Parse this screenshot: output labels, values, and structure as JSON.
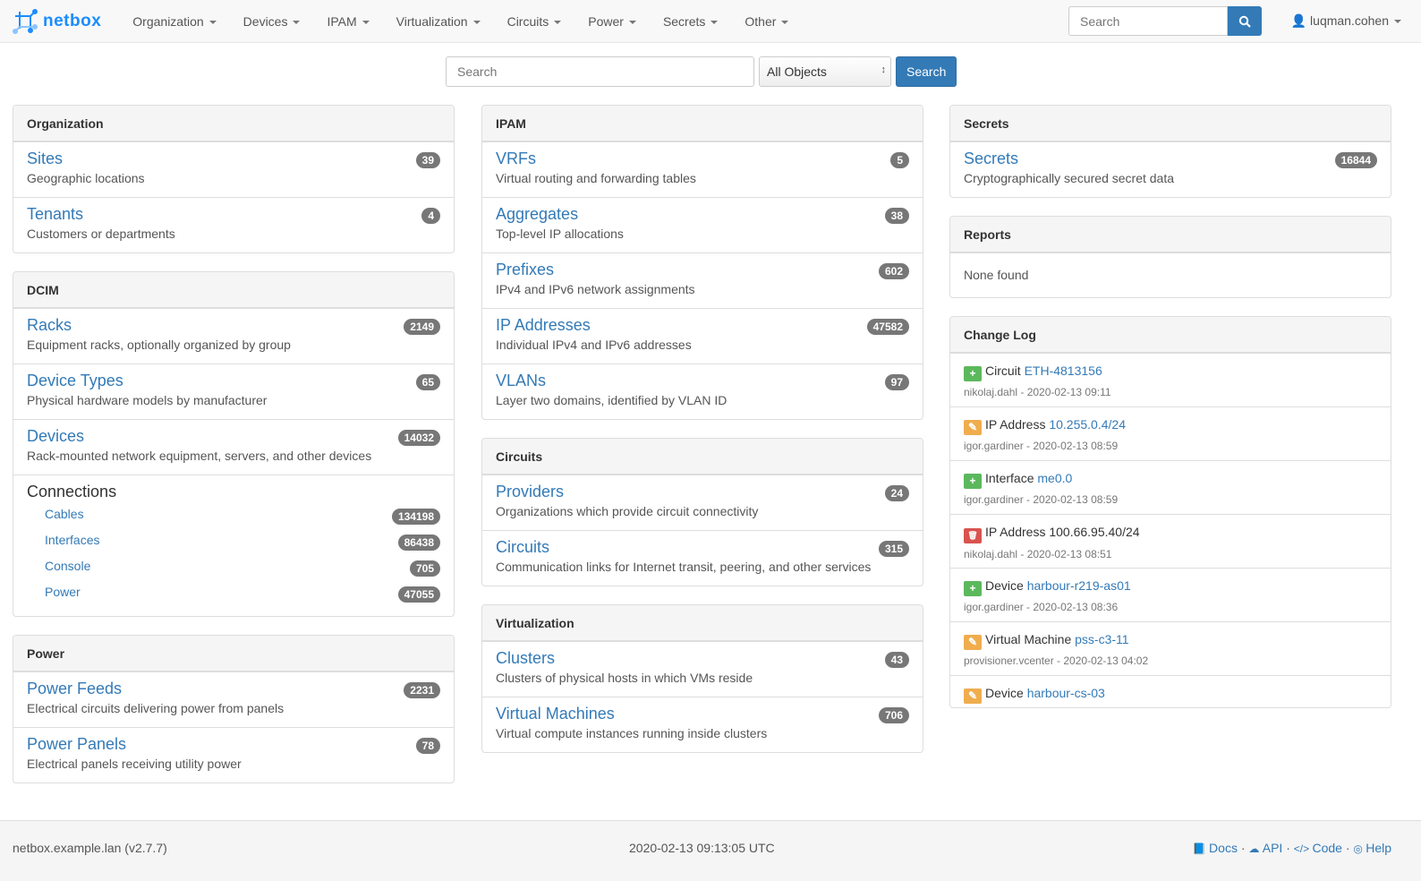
{
  "navbar": {
    "brand": "netbox",
    "menus": [
      "Organization",
      "Devices",
      "IPAM",
      "Virtualization",
      "Circuits",
      "Power",
      "Secrets",
      "Other"
    ],
    "search_placeholder": "Search",
    "user": "luqman.cohen"
  },
  "global_search": {
    "placeholder": "Search",
    "scope": "All Objects",
    "button": "Search"
  },
  "columns": [
    [
      {
        "title": "Organization",
        "items": [
          {
            "label": "Sites",
            "desc": "Geographic locations",
            "count": "39"
          },
          {
            "label": "Tenants",
            "desc": "Customers or departments",
            "count": "4"
          }
        ]
      },
      {
        "title": "DCIM",
        "items": [
          {
            "label": "Racks",
            "desc": "Equipment racks, optionally organized by group",
            "count": "2149"
          },
          {
            "label": "Device Types",
            "desc": "Physical hardware models by manufacturer",
            "count": "65"
          },
          {
            "label": "Devices",
            "desc": "Rack-mounted network equipment, servers, and other devices",
            "count": "14032"
          }
        ],
        "connections": {
          "title": "Connections",
          "items": [
            {
              "label": "Cables",
              "count": "134198"
            },
            {
              "label": "Interfaces",
              "count": "86438"
            },
            {
              "label": "Console",
              "count": "705"
            },
            {
              "label": "Power",
              "count": "47055"
            }
          ]
        }
      },
      {
        "title": "Power",
        "items": [
          {
            "label": "Power Feeds",
            "desc": "Electrical circuits delivering power from panels",
            "count": "2231"
          },
          {
            "label": "Power Panels",
            "desc": "Electrical panels receiving utility power",
            "count": "78"
          }
        ]
      }
    ],
    [
      {
        "title": "IPAM",
        "items": [
          {
            "label": "VRFs",
            "desc": "Virtual routing and forwarding tables",
            "count": "5"
          },
          {
            "label": "Aggregates",
            "desc": "Top-level IP allocations",
            "count": "38"
          },
          {
            "label": "Prefixes",
            "desc": "IPv4 and IPv6 network assignments",
            "count": "602"
          },
          {
            "label": "IP Addresses",
            "desc": "Individual IPv4 and IPv6 addresses",
            "count": "47582"
          },
          {
            "label": "VLANs",
            "desc": "Layer two domains, identified by VLAN ID",
            "count": "97"
          }
        ]
      },
      {
        "title": "Circuits",
        "items": [
          {
            "label": "Providers",
            "desc": "Organizations which provide circuit connectivity",
            "count": "24"
          },
          {
            "label": "Circuits",
            "desc": "Communication links for Internet transit, peering, and other services",
            "count": "315"
          }
        ]
      },
      {
        "title": "Virtualization",
        "items": [
          {
            "label": "Clusters",
            "desc": "Clusters of physical hosts in which VMs reside",
            "count": "43"
          },
          {
            "label": "Virtual Machines",
            "desc": "Virtual compute instances running inside clusters",
            "count": "706"
          }
        ]
      }
    ],
    [
      {
        "title": "Secrets",
        "items": [
          {
            "label": "Secrets",
            "desc": "Cryptographically secured secret data",
            "count": "16844"
          }
        ]
      },
      {
        "title": "Reports",
        "empty": "None found"
      }
    ]
  ],
  "changelog": {
    "title": "Change Log",
    "entries": [
      {
        "action": "create",
        "type": "Circuit",
        "object": "ETH-4813156",
        "linked": true,
        "meta": "nikolaj.dahl - 2020-02-13 09:11"
      },
      {
        "action": "update",
        "type": "IP Address",
        "object": "10.255.0.4/24",
        "linked": true,
        "meta": "igor.gardiner - 2020-02-13 08:59"
      },
      {
        "action": "create",
        "type": "Interface",
        "object": "me0.0",
        "linked": true,
        "meta": "igor.gardiner - 2020-02-13 08:59"
      },
      {
        "action": "delete",
        "type": "IP Address",
        "object": "100.66.95.40/24",
        "linked": false,
        "meta": "nikolaj.dahl - 2020-02-13 08:51"
      },
      {
        "action": "create",
        "type": "Device",
        "object": "harbour-r219-as01",
        "linked": true,
        "meta": "igor.gardiner - 2020-02-13 08:36"
      },
      {
        "action": "update",
        "type": "Virtual Machine",
        "object": "pss-c3-11",
        "linked": true,
        "meta": "provisioner.vcenter - 2020-02-13 04:02"
      },
      {
        "action": "update",
        "type": "Device",
        "object": "harbour-cs-03",
        "linked": true,
        "meta": ""
      }
    ]
  },
  "action_colors": {
    "create": "#5cb85c",
    "update": "#f0ad4e",
    "delete": "#d9534f"
  },
  "footer": {
    "host": "netbox.example.lan (v2.7.7)",
    "time": "2020-02-13 09:13:05 UTC",
    "links": [
      {
        "icon": "book-icon",
        "label": "Docs"
      },
      {
        "icon": "cloud-icon",
        "label": "API"
      },
      {
        "icon": "code-icon",
        "label": "Code"
      },
      {
        "icon": "lifebuoy-icon",
        "label": "Help"
      }
    ]
  }
}
